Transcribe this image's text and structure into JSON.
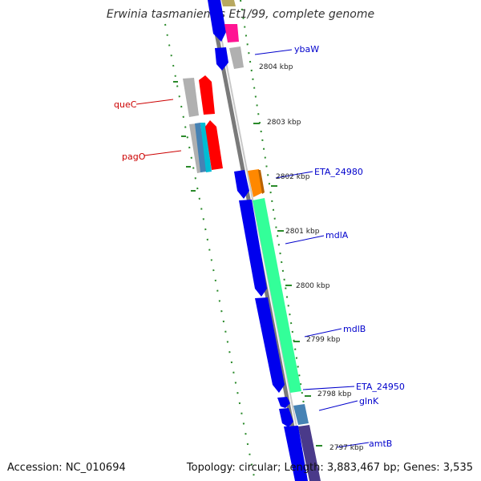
{
  "title": "Erwinia tasmaniensis Et1/99, complete genome",
  "footer": {
    "accession": "Accession: NC_010694",
    "summary": "Topology: circular; Length: 3,883,467 bp; Genes: 3,535"
  },
  "scale_labels": [
    "2804 kbp",
    "2803 kbp",
    "2802 kbp",
    "2801 kbp",
    "2800 kbp",
    "2799 kbp",
    "2798 kbp",
    "2797 kbp"
  ],
  "gene_labels": {
    "quec": "queC",
    "pago": "pagO",
    "ybaw": "ybaW",
    "eta24980": "ETA_24980",
    "mdla": "mdlA",
    "mdlb": "mdlB",
    "eta24950": "ETA_24950",
    "glnk": "glnK",
    "amtb": "amtB"
  },
  "colors": {
    "forward_label": "#0000cc",
    "reverse_label": "#cc0000",
    "cds_blue": "#0000ee",
    "cds_green": "#33ff99",
    "cds_red": "#ff0000",
    "cds_orange": "#ff8800",
    "cds_magenta": "#ff1493",
    "cds_gray": "#b0b0b0",
    "cds_purple": "#4a3a8a",
    "cds_steel": "#4682b4",
    "cds_cyan": "#00bcd4",
    "backbone": "#7a7a7a",
    "gc_skew_dots": "#2a8a2a"
  }
}
